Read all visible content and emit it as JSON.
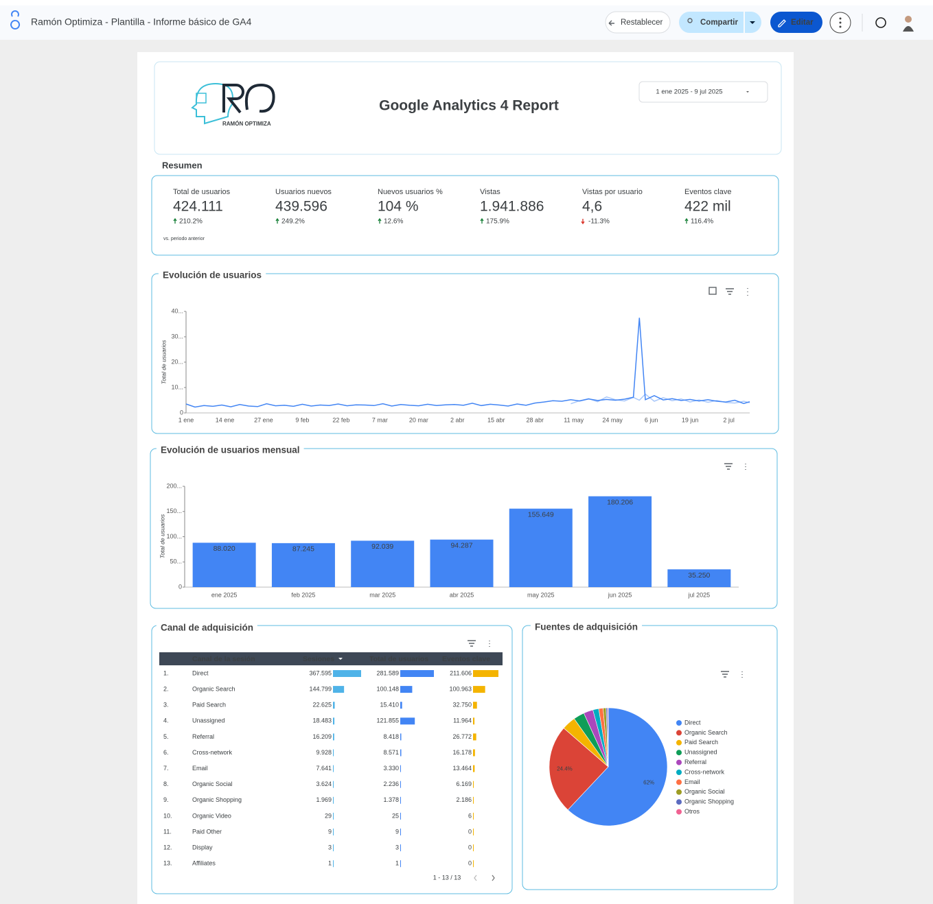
{
  "header": {
    "title": "Ramón Optimiza - Plantilla - Informe básico de GA4",
    "buttons": {
      "reset": "Restablecer",
      "share": "Compartir",
      "edit": "Editar"
    }
  },
  "report": {
    "logo_text": "RAMÓN OPTIMIZA",
    "title": "Google Analytics 4 Report",
    "date_range": "1 ene 2025 - 9 jul 2025"
  },
  "summary": {
    "title": "Resumen",
    "note": "vs. periodo anterior",
    "metrics": [
      {
        "label": "Total de usuarios",
        "value": "424.111",
        "change": "210.2%",
        "trend": "up"
      },
      {
        "label": "Usuarios nuevos",
        "value": "439.596",
        "change": "249.2%",
        "trend": "up"
      },
      {
        "label": "Nuevos usuarios %",
        "value": "104 %",
        "change": "12.6%",
        "trend": "up"
      },
      {
        "label": "Vistas",
        "value": "1.941.886",
        "change": "175.9%",
        "trend": "up"
      },
      {
        "label": "Vistas por usuario",
        "value": "4,6",
        "change": "-11.3%",
        "trend": "down"
      },
      {
        "label": "Eventos clave",
        "value": "422 mil",
        "change": "116.4%",
        "trend": "up"
      }
    ]
  },
  "chart_data": [
    {
      "type": "line",
      "title": "Evolución de usuarios",
      "y_label": "Total de usuarios",
      "x": [
        0,
        3,
        6,
        9,
        12,
        15,
        18,
        21,
        24,
        27,
        30,
        33,
        36,
        39,
        42,
        45,
        48,
        51,
        54,
        57,
        60,
        63,
        66,
        69,
        72,
        75,
        78,
        81,
        84,
        87,
        90,
        93,
        96,
        99,
        102,
        105,
        108,
        111,
        114,
        117,
        120,
        123,
        126,
        129,
        132,
        135,
        138,
        141,
        144,
        147,
        150,
        152,
        154,
        157,
        160,
        163,
        166,
        169,
        172,
        175,
        178,
        181,
        184,
        187,
        189
      ],
      "series": [
        {
          "color": "#4285f4",
          "values": [
            3500,
            2300,
            2900,
            2600,
            3100,
            2400,
            3300,
            2700,
            2500,
            3600,
            2800,
            3000,
            2600,
            3400,
            2700,
            3100,
            2900,
            3500,
            2800,
            3200,
            3100,
            2900,
            3600,
            2700,
            3300,
            3000,
            2800,
            3400,
            2900,
            3200,
            3300,
            3000,
            3800,
            2900,
            3400,
            3100,
            2700,
            3500,
            3000,
            3900,
            4300,
            4800,
            4600,
            5200,
            4700,
            5500,
            4900,
            5300,
            5000,
            5400,
            6200,
            37500,
            5200,
            6800,
            5100,
            5600,
            4900,
            5300,
            4700,
            5200,
            4600,
            4300,
            5000,
            3700,
            4400
          ]
        },
        {
          "color": "#a8c7fa",
          "values": [
            null,
            null,
            null,
            null,
            null,
            null,
            null,
            null,
            null,
            null,
            null,
            null,
            null,
            null,
            null,
            null,
            null,
            null,
            null,
            null,
            null,
            null,
            null,
            null,
            null,
            null,
            null,
            null,
            null,
            null,
            null,
            null,
            null,
            null,
            null,
            null,
            null,
            null,
            null,
            null,
            null,
            null,
            null,
            3600,
            4800,
            5600,
            4400,
            6300,
            5200,
            4700,
            6100,
            5000,
            7400,
            4600,
            6000,
            4800,
            5500,
            4300,
            5100,
            4200,
            4900,
            4100,
            3900,
            4600,
            4000
          ]
        }
      ],
      "xlim": [
        0,
        189
      ],
      "xticks": [
        {
          "value": 0,
          "label": "1 ene"
        },
        {
          "value": 13,
          "label": "14 ene"
        },
        {
          "value": 26,
          "label": "27 ene"
        },
        {
          "value": 39,
          "label": "9 feb"
        },
        {
          "value": 52,
          "label": "22 feb"
        },
        {
          "value": 65,
          "label": "7 mar"
        },
        {
          "value": 78,
          "label": "20 mar"
        },
        {
          "value": 91,
          "label": "2 abr"
        },
        {
          "value": 104,
          "label": "15 abr"
        },
        {
          "value": 117,
          "label": "28 abr"
        },
        {
          "value": 130,
          "label": "11 may"
        },
        {
          "value": 143,
          "label": "24 may"
        },
        {
          "value": 156,
          "label": "6 jun"
        },
        {
          "value": 169,
          "label": "19 jun"
        },
        {
          "value": 182,
          "label": "2 jul"
        }
      ],
      "ylim": [
        0,
        40000
      ],
      "yticks": [
        0,
        {
          "value": 10000,
          "label": "10..."
        },
        {
          "value": 20000,
          "label": "20..."
        },
        {
          "value": 30000,
          "label": "30..."
        },
        {
          "value": 40000,
          "label": "40..."
        }
      ]
    },
    {
      "type": "bar",
      "title": "Evolución de usuarios mensual",
      "y_label": "Total de usuarios",
      "categories": [
        "ene 2025",
        "feb 2025",
        "mar 2025",
        "abr 2025",
        "may 2025",
        "jun 2025",
        "jul 2025"
      ],
      "values": [
        88020,
        87245,
        92039,
        94287,
        155649,
        180206,
        35250
      ],
      "value_labels": [
        "88.020",
        "87.245",
        "92.039",
        "94.287",
        "155.649",
        "180.206",
        "35.250"
      ],
      "color": "#4285f4",
      "ylim": [
        0,
        200000
      ],
      "yticks": [
        0,
        {
          "value": 50000,
          "label": "50..."
        },
        {
          "value": 100000,
          "label": "100..."
        },
        {
          "value": 150000,
          "label": "150..."
        },
        {
          "value": 200000,
          "label": "200..."
        }
      ]
    },
    {
      "type": "pie",
      "title": "Fuentes de adquisición",
      "categories": [
        "Direct",
        "Organic Search",
        "Paid Search",
        "Unassigned",
        "Referral",
        "Cross-network",
        "Email",
        "Organic Social",
        "Organic Shopping",
        "Otros"
      ],
      "values": [
        62,
        24.4,
        3.8,
        3,
        2.6,
        1.6,
        1.2,
        0.8,
        0.4,
        0.2
      ],
      "value_labels": [
        "62%",
        "24.4%",
        null,
        null,
        null,
        null,
        null,
        null,
        null,
        null
      ],
      "colors": [
        "#4285f4",
        "#db4437",
        "#f4b400",
        "#0f9d58",
        "#ab47bc",
        "#00acc1",
        "#ff7043",
        "#9e9d24",
        "#5c6bc0",
        "#f06292"
      ]
    }
  ],
  "table": {
    "title": "Canal de adquisición",
    "columns": [
      "Canal de la sesión",
      "Sesiones",
      "Total de usuarios",
      "Eventos clave"
    ],
    "bar_colors": [
      "#4fb3e8",
      "#4285f4",
      "#f4b400"
    ],
    "rows": [
      {
        "rank": "1.",
        "channel": "Direct",
        "values": [
          367595,
          281589,
          211606
        ],
        "value_labels": [
          "367.595",
          "281.589",
          "211.606"
        ]
      },
      {
        "rank": "2.",
        "channel": "Organic Search",
        "values": [
          144799,
          100148,
          100963
        ],
        "value_labels": [
          "144.799",
          "100.148",
          "100.963"
        ]
      },
      {
        "rank": "3.",
        "channel": "Paid Search",
        "values": [
          22625,
          15410,
          32750
        ],
        "value_labels": [
          "22.625",
          "15.410",
          "32.750"
        ]
      },
      {
        "rank": "4.",
        "channel": "Unassigned",
        "values": [
          18483,
          121855,
          11964
        ],
        "value_labels": [
          "18.483",
          "121.855",
          "11.964"
        ]
      },
      {
        "rank": "5.",
        "channel": "Referral",
        "values": [
          16209,
          8418,
          26772
        ],
        "value_labels": [
          "16.209",
          "8.418",
          "26.772"
        ]
      },
      {
        "rank": "6.",
        "channel": "Cross-network",
        "values": [
          9928,
          8571,
          16178
        ],
        "value_labels": [
          "9.928",
          "8.571",
          "16.178"
        ]
      },
      {
        "rank": "7.",
        "channel": "Email",
        "values": [
          7641,
          3330,
          13464
        ],
        "value_labels": [
          "7.641",
          "3.330",
          "13.464"
        ]
      },
      {
        "rank": "8.",
        "channel": "Organic Social",
        "values": [
          3624,
          2236,
          6169
        ],
        "value_labels": [
          "3.624",
          "2.236",
          "6.169"
        ]
      },
      {
        "rank": "9.",
        "channel": "Organic Shopping",
        "values": [
          1969,
          1378,
          2186
        ],
        "value_labels": [
          "1.969",
          "1.378",
          "2.186"
        ]
      },
      {
        "rank": "10.",
        "channel": "Organic Video",
        "values": [
          29,
          25,
          6
        ]
      },
      {
        "rank": "11.",
        "channel": "Paid Other",
        "values": [
          9,
          9,
          0
        ]
      },
      {
        "rank": "12.",
        "channel": "Display",
        "values": [
          3,
          3,
          0
        ]
      },
      {
        "rank": "13.",
        "channel": "Affiliates",
        "values": [
          1,
          1,
          0
        ]
      }
    ],
    "pagination": "1 - 13 / 13"
  }
}
